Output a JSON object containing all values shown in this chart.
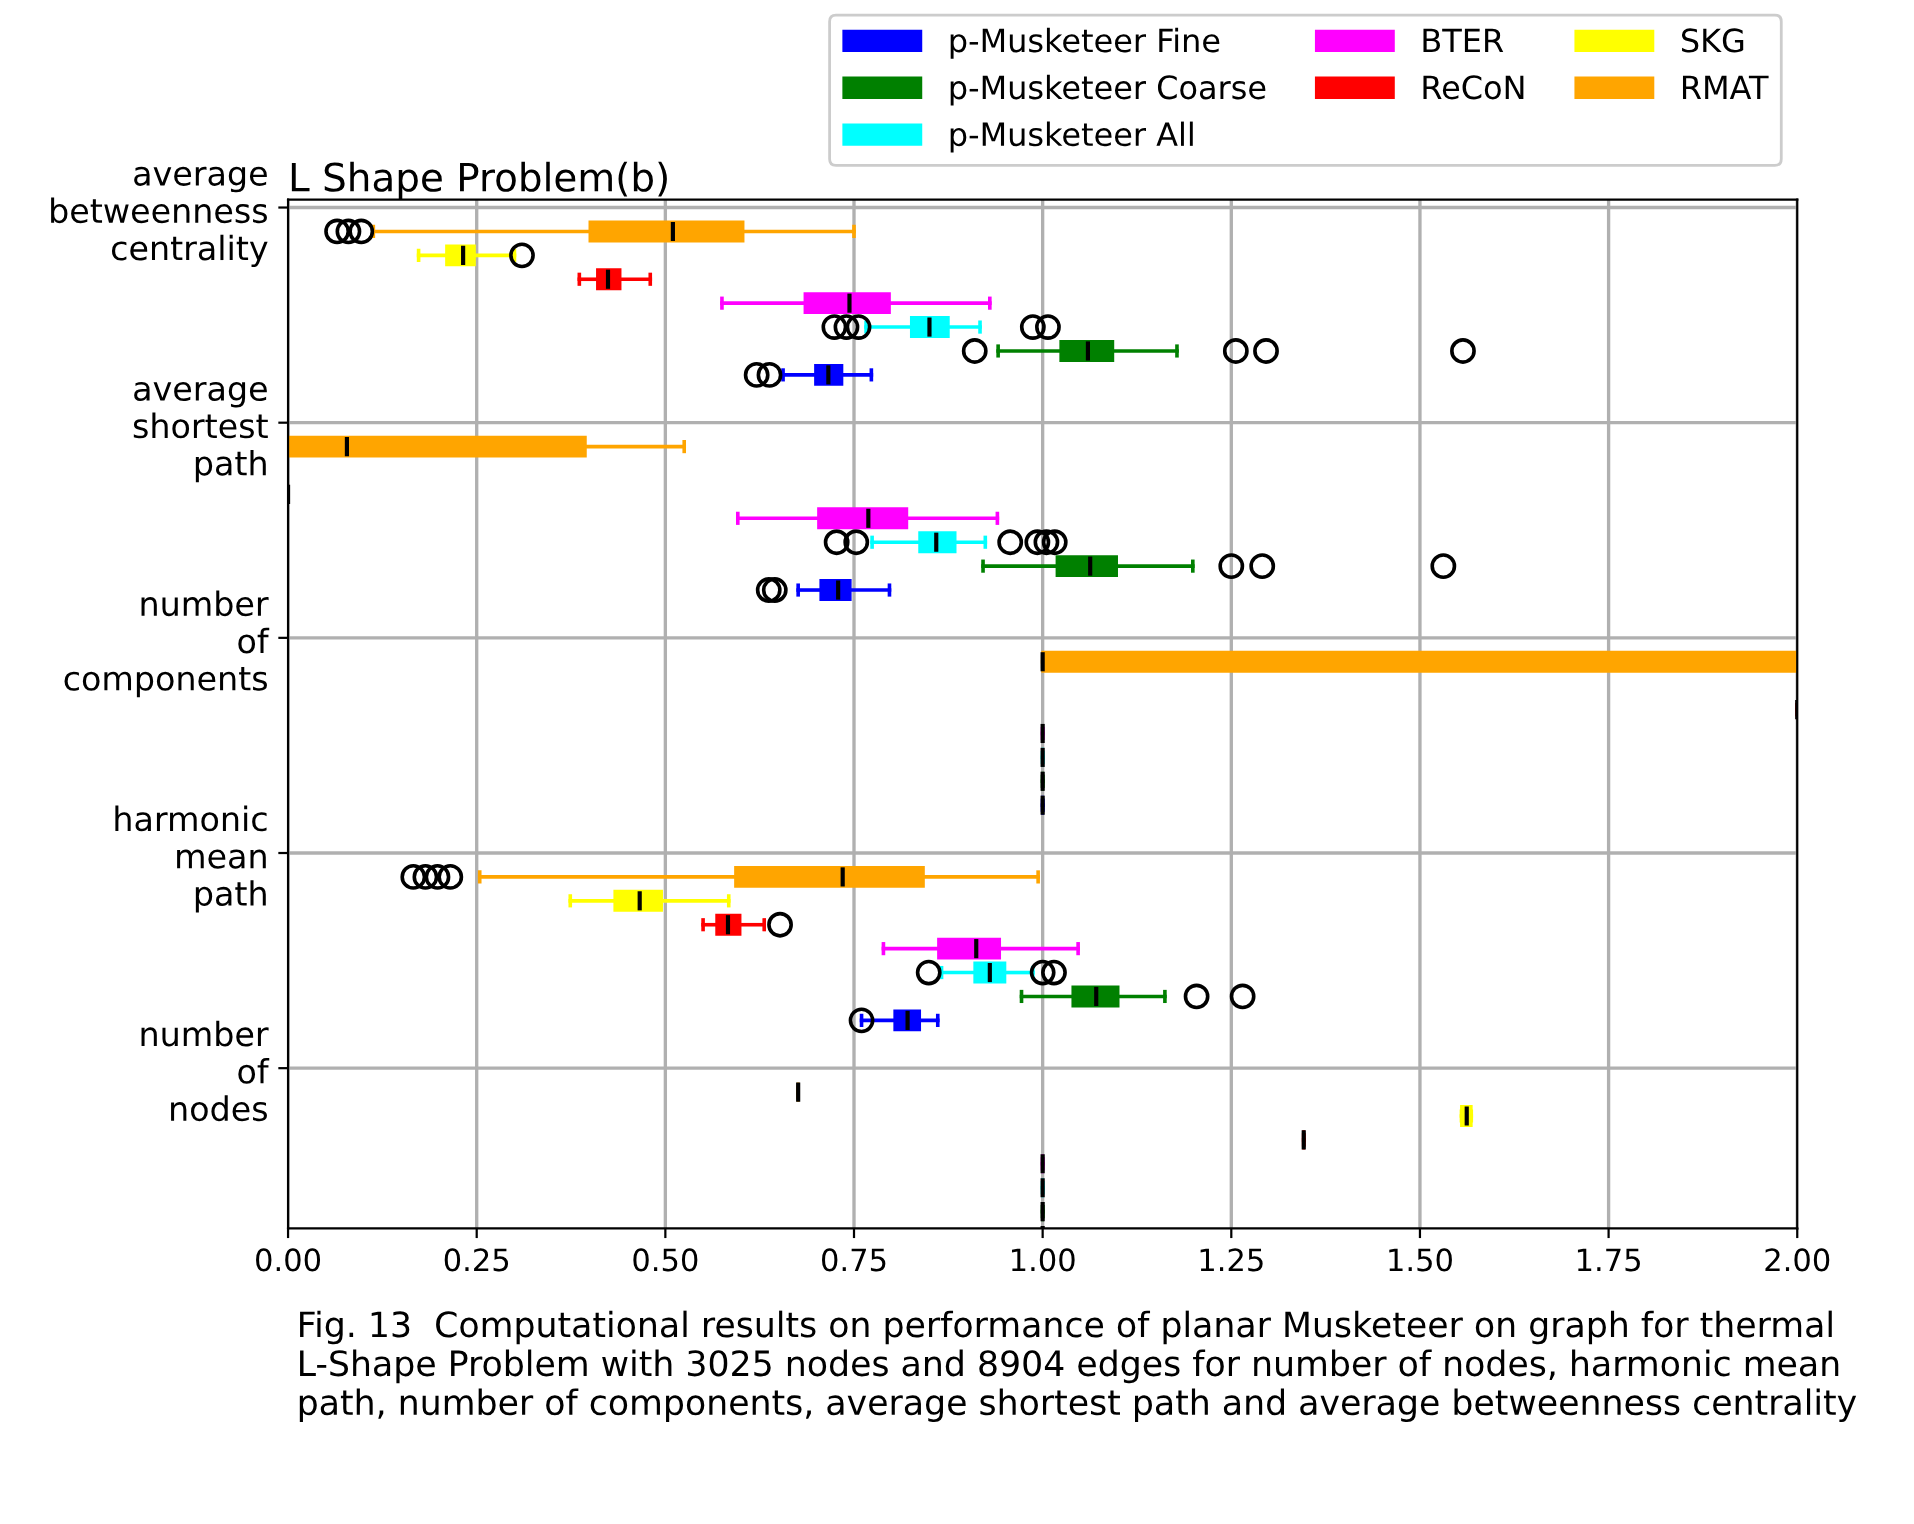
{
  "chart_data": {
    "type": "box",
    "orientation": "horizontal",
    "title": "L Shape Problem(b)",
    "categories": [
      "average betweenness centrality",
      "average shortest path",
      "number of components",
      "harmonic mean path",
      "number of nodes"
    ],
    "xlim": [
      0,
      2
    ],
    "xticks": [
      {
        "value": 0,
        "label": "0.00"
      },
      {
        "value": 0.25,
        "label": "0.25"
      },
      {
        "value": 0.5,
        "label": "0.50"
      },
      {
        "value": 0.75,
        "label": "0.75"
      },
      {
        "value": 1,
        "label": "1.00"
      },
      {
        "value": 1.25,
        "label": "1.25"
      },
      {
        "value": 1.5,
        "label": "1.50"
      },
      {
        "value": 1.75,
        "label": "1.75"
      },
      {
        "value": 2,
        "label": "2.00"
      }
    ],
    "grid": true,
    "legend": "top right",
    "series": [
      {
        "name": "p-Musketeer Fine",
        "color": "#0000ff",
        "boxes": [
          {
            "low": 0.656,
            "q1": 0.699,
            "median": 0.716,
            "q3": 0.734,
            "high": 0.773,
            "outliers": [
              0.621,
              0.638
            ]
          },
          {
            "low": 0.676,
            "q1": 0.706,
            "median": 0.729,
            "q3": 0.745,
            "high": 0.797,
            "outliers": [
              0.637,
              0.645
            ]
          },
          {
            "low": 1,
            "q1": 1,
            "median": 1,
            "q3": 1,
            "high": 1
          },
          {
            "low": 0.76,
            "q1": 0.804,
            "median": 0.821,
            "q3": 0.837,
            "high": 0.861,
            "outliers": [
              0.76
            ]
          },
          {
            "low": 1,
            "q1": 1,
            "median": 1,
            "q3": 1,
            "high": 1
          }
        ]
      },
      {
        "name": "p-Musketeer Coarse",
        "color": "#008000",
        "boxes": [
          {
            "low": 0.941,
            "q1": 1.024,
            "median": 1.06,
            "q3": 1.093,
            "high": 1.178,
            "outliers": [
              0.91,
              1.256,
              1.296,
              1.557
            ]
          },
          {
            "low": 0.921,
            "q1": 1.019,
            "median": 1.063,
            "q3": 1.098,
            "high": 1.199,
            "outliers": [
              1.25,
              1.291,
              1.531
            ]
          },
          {
            "low": 1,
            "q1": 1,
            "median": 1,
            "q3": 1,
            "high": 1
          },
          {
            "low": 0.972,
            "q1": 1.04,
            "median": 1.071,
            "q3": 1.1,
            "high": 1.162,
            "outliers": [
              1.204,
              1.265
            ]
          },
          {
            "low": 1,
            "q1": 1,
            "median": 1,
            "q3": 1,
            "high": 1
          }
        ]
      },
      {
        "name": "p-Musketeer All",
        "color": "#00ffff",
        "boxes": [
          {
            "low": 0.766,
            "q1": 0.826,
            "median": 0.85,
            "q3": 0.875,
            "high": 0.917,
            "outliers": [
              0.724,
              0.74,
              0.756,
              0.987,
              1.007
            ]
          },
          {
            "low": 0.774,
            "q1": 0.837,
            "median": 0.859,
            "q3": 0.884,
            "high": 0.924,
            "outliers": [
              0.727,
              0.753,
              0.957,
              0.993,
              1.005,
              1.016
            ]
          },
          {
            "low": 1,
            "q1": 1,
            "median": 1,
            "q3": 1,
            "high": 1
          },
          {
            "low": 0.866,
            "q1": 0.91,
            "median": 0.93,
            "q3": 0.95,
            "high": 0.987,
            "outliers": [
              0.849,
              1.0,
              1.015
            ]
          },
          {
            "low": 1,
            "q1": 1,
            "median": 1,
            "q3": 1,
            "high": 1
          }
        ]
      },
      {
        "name": "BTER",
        "color": "#ff00ff",
        "boxes": [
          {
            "low": 0.575,
            "q1": 0.685,
            "median": 0.744,
            "q3": 0.797,
            "high": 0.93
          },
          {
            "low": 0.596,
            "q1": 0.703,
            "median": 0.769,
            "q3": 0.82,
            "high": 0.94
          },
          {
            "low": 1,
            "q1": 1,
            "median": 1,
            "q3": 1,
            "high": 1
          },
          {
            "low": 0.789,
            "q1": 0.862,
            "median": 0.912,
            "q3": 0.943,
            "high": 1.047
          },
          {
            "low": 1,
            "q1": 1,
            "median": 1,
            "q3": 1,
            "high": 1
          }
        ]
      },
      {
        "name": "ReCoN",
        "color": "#ff0000",
        "boxes": [
          {
            "low": 0.386,
            "q1": 0.41,
            "median": 0.424,
            "q3": 0.44,
            "high": 0.48
          },
          {
            "low": 0,
            "q1": 0,
            "median": 0,
            "q3": 0,
            "high": 0
          },
          {
            "low": 2,
            "q1": 2,
            "median": 2,
            "q3": 2,
            "high": 2
          },
          {
            "low": 0.55,
            "q1": 0.568,
            "median": 0.583,
            "q3": 0.599,
            "high": 0.631,
            "outliers": [
              0.652
            ]
          },
          {
            "low": 1.346,
            "q1": 1.346,
            "median": 1.346,
            "q3": 1.346,
            "high": 1.346
          }
        ]
      },
      {
        "name": "SKG",
        "color": "#ffff00",
        "boxes": [
          {
            "low": 0.173,
            "q1": 0.21,
            "median": 0.232,
            "q3": 0.247,
            "high": 0.3,
            "outliers": [
              0.31
            ]
          },
          null,
          null,
          {
            "low": 0.374,
            "q1": 0.433,
            "median": 0.466,
            "q3": 0.495,
            "high": 0.584
          },
          {
            "low": 1.555,
            "q1": 1.555,
            "median": 1.562,
            "q3": 1.568,
            "high": 1.568
          }
        ]
      },
      {
        "name": "RMAT",
        "color": "#ffa500",
        "boxes": [
          {
            "low": 0.113,
            "q1": 0.4,
            "median": 0.51,
            "q3": 0.603,
            "high": 0.75,
            "outliers": [
              0.065,
              0.08,
              0.097
            ]
          },
          {
            "low": 0,
            "q1": 0,
            "median": 0.078,
            "q3": 0.394,
            "high": 0.525
          },
          {
            "low": 1,
            "q1": 1,
            "median": 1,
            "q3": 2,
            "high": 2
          },
          {
            "low": 0.254,
            "q1": 0.593,
            "median": 0.735,
            "q3": 0.842,
            "high": 0.994,
            "outliers": [
              0.166,
              0.182,
              0.198,
              0.215
            ]
          },
          {
            "low": 0.676,
            "q1": 0.676,
            "median": 0.676,
            "q3": 0.676,
            "high": 0.676
          }
        ]
      }
    ],
    "annotations": [
      "Fig. 13  Computational results on performance of planar Musketeer on graph for thermal L-Shape Problem with 3025 nodes and 8904 edges for number of nodes, harmonic mean path, number of components, average shortest path and average betweenness centrality"
    ]
  }
}
